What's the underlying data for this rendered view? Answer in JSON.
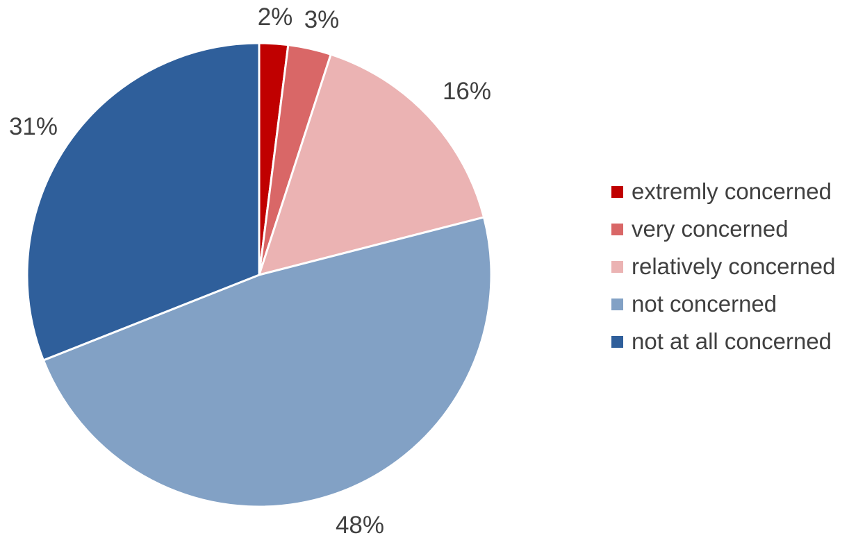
{
  "chart_data": {
    "type": "pie",
    "title": "",
    "slices": [
      {
        "label": "extremly concerned",
        "value": 2,
        "display": "2%",
        "color": "#c00000"
      },
      {
        "label": "very concerned",
        "value": 3,
        "display": "3%",
        "color": "#d96767"
      },
      {
        "label": "relatively concerned",
        "value": 16,
        "display": "16%",
        "color": "#ebb3b3"
      },
      {
        "label": "not concerned",
        "value": 48,
        "display": "48%",
        "color": "#82a1c5"
      },
      {
        "label": "not at all concerned",
        "value": 31,
        "display": "31%",
        "color": "#2f5f9b"
      }
    ],
    "legend_position": "right"
  }
}
